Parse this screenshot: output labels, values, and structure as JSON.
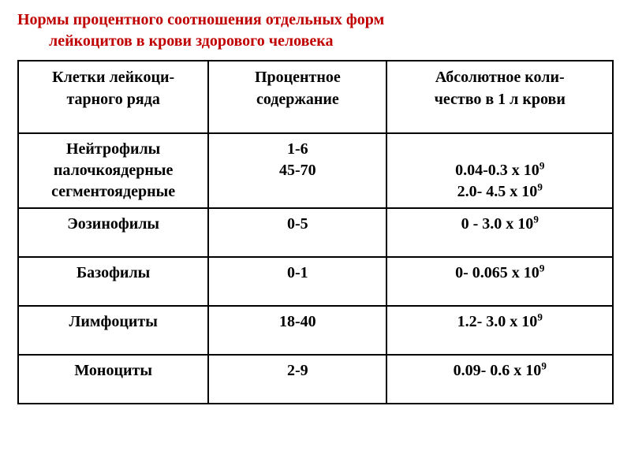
{
  "title": {
    "line1": "Нормы процентного соотношения отдельных форм",
    "line2": "лейкоцитов в крови здорового человека"
  },
  "colors": {
    "title_color": "#c00000",
    "border_color": "#000000",
    "text_color": "#000000",
    "background": "#ffffff"
  },
  "typography": {
    "font_family": "Times New Roman",
    "title_fontsize_pt": 20,
    "header_fontsize_pt": 20,
    "cell_fontsize_pt": 20,
    "font_weight": "bold"
  },
  "table": {
    "type": "table",
    "columns": [
      {
        "header_line1": "Клетки лейкоци-",
        "header_line2": "тарного ряда",
        "width_pct": 32
      },
      {
        "header_line1": "Процентное",
        "header_line2": "содержание",
        "width_pct": 30
      },
      {
        "header_line1": "Абсолютное коли-",
        "header_line2": "чество в 1 л крови",
        "width_pct": 38
      }
    ],
    "rows": [
      {
        "cell1": {
          "line1": "Нейтрофилы",
          "line2": "палочкоядерные",
          "line3": "сегментоядерные"
        },
        "cell2": {
          "line1": "",
          "line2": "1-6",
          "line3": "45-70"
        },
        "cell3": {
          "line1": "",
          "line2_pre": "0.04-0.3 х 10",
          "line2_sup": "9",
          "line3_pre": "2.0-  4.5 х 10",
          "line3_sup": "9"
        }
      },
      {
        "cell1": {
          "line1": "Эозинофилы"
        },
        "cell2": {
          "line1": "0-5"
        },
        "cell3": {
          "line1_pre": "0 - 3.0 х 10",
          "line1_sup": "9"
        }
      },
      {
        "cell1": {
          "line1": "Базофилы"
        },
        "cell2": {
          "line1": "0-1"
        },
        "cell3": {
          "line1_pre": "0- 0.065 х 10",
          "line1_sup": "9"
        }
      },
      {
        "cell1": {
          "line1": "Лимфоциты"
        },
        "cell2": {
          "line1": "18-40"
        },
        "cell3": {
          "line1_pre": "1.2- 3.0 х 10",
          "line1_sup": "9"
        }
      },
      {
        "cell1": {
          "line1": "Моноциты"
        },
        "cell2": {
          "line1": "2-9"
        },
        "cell3": {
          "line1_pre": "0.09- 0.6 х 10",
          "line1_sup": "9"
        }
      }
    ]
  }
}
